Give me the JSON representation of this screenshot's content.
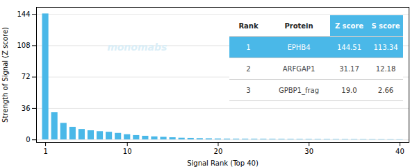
{
  "chart_data": {
    "type": "bar",
    "x": [
      1,
      2,
      3,
      4,
      5,
      6,
      7,
      8,
      9,
      10,
      11,
      12,
      13,
      14,
      15,
      16,
      17,
      18,
      19,
      20,
      21,
      22,
      23,
      24,
      25,
      26,
      27,
      28,
      29,
      30,
      31,
      32,
      33,
      34,
      35,
      36,
      37,
      38,
      39,
      40
    ],
    "values": [
      144.51,
      31.17,
      19.0,
      14.5,
      12.0,
      10.5,
      9.5,
      8.8,
      7.5,
      6.0,
      5.0,
      4.2,
      3.5,
      3.0,
      2.5,
      2.0,
      1.8,
      1.5,
      1.3,
      1.1,
      0.9,
      0.8,
      0.75,
      0.7,
      0.65,
      0.6,
      0.55,
      0.5,
      0.48,
      0.45,
      0.42,
      0.4,
      0.38,
      0.36,
      0.34,
      0.32,
      0.3,
      0.28,
      0.26,
      0.24
    ],
    "color": "#4ab8e8",
    "xlabel": "Signal Rank (Top 40)",
    "ylabel": "Strength of Signal (Z score)",
    "xlim": [
      0,
      41
    ],
    "xticks": [
      1,
      10,
      20,
      30,
      40
    ],
    "ylim": [
      -3,
      152
    ],
    "yticks": [
      0,
      36,
      72,
      108,
      144
    ],
    "grid": true,
    "annotations": [
      {
        "text": "monomabs",
        "color": "#daeef7"
      }
    ],
    "table": {
      "columns": [
        "Rank",
        "Protein",
        "Z score",
        "S score"
      ],
      "rows": [
        [
          "1",
          "EPHB4",
          "144.51",
          "113.34"
        ],
        [
          "2",
          "ARFGAP1",
          "31.17",
          "12.18"
        ],
        [
          "3",
          "GPBP1_frag",
          "19.0",
          "2.66"
        ]
      ]
    }
  }
}
